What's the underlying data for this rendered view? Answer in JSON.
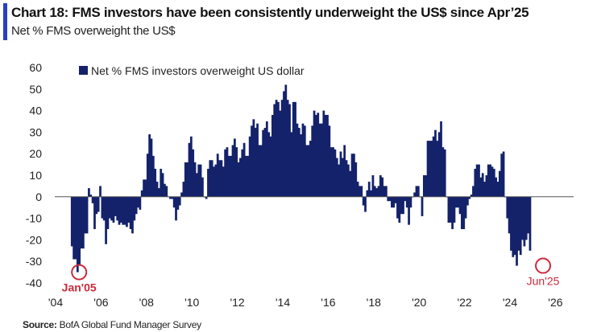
{
  "header": {
    "title": "Chart 18: FMS investors have been consistently underweight the US$ since Apr’25",
    "subtitle": "Net % FMS overweight the US$",
    "accent_color": "#2b3fbf"
  },
  "footer": {
    "source_label": "Source:",
    "source_text": "BofA Global Fund Manager Survey"
  },
  "chart_data": {
    "type": "bar",
    "title": "Chart 18: FMS investors have been consistently underweight the US$ since Apr’25",
    "subtitle": "Net % FMS overweight the US$",
    "xlabel": "",
    "ylabel": "",
    "ylim": [
      -40,
      60
    ],
    "yticks": [
      60,
      50,
      40,
      30,
      20,
      10,
      0,
      -10,
      -20,
      -30,
      -40
    ],
    "xlim": [
      2004,
      2027
    ],
    "xticks": [
      2004,
      2006,
      2008,
      2010,
      2012,
      2014,
      2016,
      2018,
      2020,
      2022,
      2024,
      2026
    ],
    "xtick_labels": [
      "'04",
      "'06",
      "'08",
      "'10",
      "'12",
      "'14",
      "'16",
      "'18",
      "'20",
      "'22",
      "'24",
      "'26"
    ],
    "grid": false,
    "legend": {
      "position": "top-left",
      "entries": [
        "Net % FMS investors overweight US dollar"
      ]
    },
    "bar_color": "#14226b",
    "annotation_color": "#cc2a3c",
    "annotations": [
      {
        "label": "Jan'05",
        "x": 2005.0,
        "y": -35
      },
      {
        "label": "Jun'25",
        "x": 2025.42,
        "y": -32
      }
    ],
    "series": [
      {
        "name": "Net % FMS investors overweight US dollar",
        "start": 2004.67,
        "frequency": "monthly",
        "values": [
          -23,
          -29,
          -29,
          -35,
          -32,
          -24,
          -24,
          -17,
          -17,
          4,
          1,
          -3,
          -15,
          -8,
          -7,
          5,
          -10,
          -11,
          -22,
          -15,
          -10,
          -11,
          -12,
          -9,
          -11,
          -13,
          -12,
          -13,
          -13,
          -14,
          -12,
          -15,
          -17,
          -11,
          -8,
          -5,
          -6,
          3,
          8,
          8,
          20,
          29,
          27,
          19,
          13,
          7,
          4,
          13,
          11,
          6,
          5,
          0,
          -1,
          -1,
          -5,
          -11,
          -6,
          -4,
          2,
          7,
          16,
          16,
          25,
          28,
          22,
          16,
          11,
          15,
          15,
          9,
          0,
          -1,
          13,
          17,
          17,
          14,
          15,
          20,
          17,
          17,
          14,
          22,
          23,
          19,
          19,
          24,
          27,
          23,
          16,
          18,
          22,
          25,
          19,
          19,
          28,
          33,
          36,
          32,
          34,
          24,
          24,
          31,
          32,
          35,
          30,
          28,
          38,
          43,
          45,
          44,
          40,
          45,
          49,
          52,
          45,
          43,
          30,
          44,
          44,
          34,
          32,
          29,
          34,
          33,
          24,
          24,
          26,
          33,
          40,
          38,
          39,
          34,
          34,
          40,
          38,
          38,
          33,
          23,
          23,
          22,
          18,
          15,
          21,
          18,
          24,
          17,
          15,
          12,
          20,
          20,
          16,
          7,
          5,
          5,
          -4,
          -7,
          3,
          7,
          3,
          10,
          5,
          4,
          5,
          10,
          9,
          5,
          5,
          -2,
          -2,
          -5,
          -5,
          -3,
          -10,
          -12,
          -8,
          -8,
          -2,
          -5,
          -13,
          -5,
          0,
          2,
          5,
          5,
          0,
          -9,
          10,
          10,
          26,
          26,
          26,
          28,
          31,
          26,
          30,
          35,
          23,
          22,
          0,
          -12,
          -12,
          -15,
          -12,
          -5,
          -5,
          -8,
          -15,
          -15,
          -10,
          -4,
          -1,
          1,
          5,
          13,
          15,
          15,
          9,
          11,
          7,
          10,
          15,
          15,
          14,
          13,
          9,
          7,
          12,
          20,
          21,
          0,
          -10,
          -17,
          -25,
          -28,
          -27,
          -32,
          -25,
          -27,
          -20,
          -23,
          -20,
          -17,
          -25
        ]
      }
    ]
  }
}
